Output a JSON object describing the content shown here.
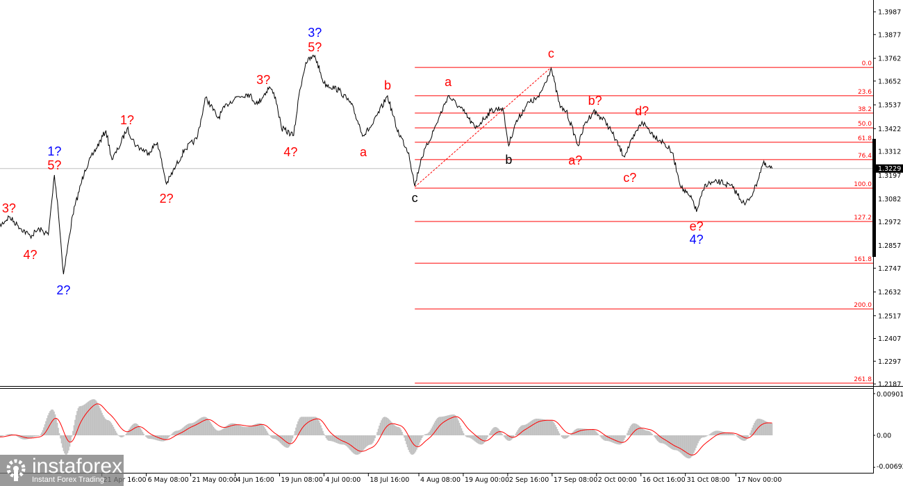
{
  "chart_data": {
    "type": "line",
    "title": "",
    "price_axis": {
      "ticks": [
        "1.3987",
        "1.3877",
        "1.3762",
        "1.3652",
        "1.3537",
        "1.3422",
        "1.3312",
        "1.3197",
        "1.3082",
        "1.2972",
        "1.2857",
        "1.2747",
        "1.2632",
        "1.2517",
        "1.2407",
        "1.2297",
        "1.2187"
      ],
      "range": [
        1.2187,
        1.3987
      ]
    },
    "time_axis": {
      "ticks": [
        {
          "date": "04-21 16:00",
          "label": "21 Apr 16:00"
        },
        {
          "date": "05-06 08:00",
          "label": "6 May 08:00"
        },
        {
          "date": "05-21 00:00",
          "label": "21 May 00:00"
        },
        {
          "date": "06-04 16:00",
          "label": "4 Jun 16:00"
        },
        {
          "date": "06-19 08:00",
          "label": "19 Jun 08:00"
        },
        {
          "date": "07-04 00:00",
          "label": "4 Jul 00:00"
        },
        {
          "date": "07-18 16:00",
          "label": "18 Jul 16:00"
        },
        {
          "date": "08-04 08:00",
          "label": "4 Aug 08:00"
        },
        {
          "date": "08-19 00:00",
          "label": "19 Aug 00:00"
        },
        {
          "date": "09-02 16:00",
          "label": "2 Sep 16:00"
        },
        {
          "date": "09-17 08:00",
          "label": "17 Sep 08:00"
        },
        {
          "date": "10-02 00:00",
          "label": "2 Oct 00:00"
        },
        {
          "date": "10-16 16:00",
          "label": "16 Oct 16:00"
        },
        {
          "date": "10-31 08:00",
          "label": "31 Oct 08:00"
        },
        {
          "date": "11-17 00:00",
          "label": "17 Nov 00:00"
        }
      ]
    },
    "current_price": "1.3229",
    "price_series": [
      [
        "03-18",
        1.2936
      ],
      [
        "03-22",
        1.2996
      ],
      [
        "03-25",
        1.2953
      ],
      [
        "03-29",
        1.2902
      ],
      [
        "04-01",
        1.2936
      ],
      [
        "04-04",
        1.2909
      ],
      [
        "04-06",
        1.3198
      ],
      [
        "04-07",
        1.307
      ],
      [
        "04-09",
        1.2718
      ],
      [
        "04-12",
        1.3003
      ],
      [
        "04-16",
        1.3221
      ],
      [
        "04-19",
        1.3305
      ],
      [
        "04-23",
        1.3413
      ],
      [
        "04-25",
        1.3272
      ],
      [
        "04-27",
        1.3322
      ],
      [
        "04-30",
        1.3423
      ],
      [
        "05-03",
        1.3339
      ],
      [
        "05-07",
        1.3305
      ],
      [
        "05-10",
        1.3356
      ],
      [
        "05-13",
        1.3154
      ],
      [
        "05-16",
        1.3238
      ],
      [
        "05-19",
        1.3322
      ],
      [
        "05-23",
        1.3372
      ],
      [
        "05-26",
        1.3574
      ],
      [
        "05-30",
        1.3473
      ],
      [
        "06-02",
        1.354
      ],
      [
        "06-05",
        1.3574
      ],
      [
        "06-09",
        1.3591
      ],
      [
        "06-12",
        1.354
      ],
      [
        "06-16",
        1.3624
      ],
      [
        "06-18",
        1.3574
      ],
      [
        "06-20",
        1.3423
      ],
      [
        "06-24",
        1.3389
      ],
      [
        "06-26",
        1.3608
      ],
      [
        "06-28",
        1.3742
      ],
      [
        "07-01",
        1.3775
      ],
      [
        "07-04",
        1.3641
      ],
      [
        "07-09",
        1.3608
      ],
      [
        "07-13",
        1.354
      ],
      [
        "07-17",
        1.3389
      ],
      [
        "07-20",
        1.344
      ],
      [
        "07-25",
        1.3581
      ],
      [
        "07-28",
        1.3423
      ],
      [
        "08-01",
        1.3305
      ],
      [
        "08-03",
        1.3144
      ],
      [
        "08-05",
        1.3272
      ],
      [
        "08-10",
        1.344
      ],
      [
        "08-14",
        1.3581
      ],
      [
        "08-19",
        1.3507
      ],
      [
        "08-23",
        1.3423
      ],
      [
        "08-28",
        1.3507
      ],
      [
        "09-01",
        1.3524
      ],
      [
        "09-03",
        1.3339
      ],
      [
        "09-05",
        1.344
      ],
      [
        "09-09",
        1.354
      ],
      [
        "09-13",
        1.3574
      ],
      [
        "09-17",
        1.3715
      ],
      [
        "09-20",
        1.3524
      ],
      [
        "09-22",
        1.3507
      ],
      [
        "09-26",
        1.3339
      ],
      [
        "09-28",
        1.344
      ],
      [
        "10-01",
        1.3507
      ],
      [
        "10-05",
        1.3456
      ],
      [
        "10-07",
        1.3406
      ],
      [
        "10-11",
        1.3289
      ],
      [
        "10-14",
        1.3372
      ],
      [
        "10-17",
        1.3456
      ],
      [
        "10-21",
        1.3389
      ],
      [
        "10-24",
        1.3356
      ],
      [
        "10-27",
        1.3305
      ],
      [
        "10-30",
        1.3137
      ],
      [
        "11-03",
        1.307
      ],
      [
        "11-04",
        1.302
      ],
      [
        "11-07",
        1.3154
      ],
      [
        "11-12",
        1.3164
      ],
      [
        "11-16",
        1.3137
      ],
      [
        "11-20",
        1.3053
      ],
      [
        "11-23",
        1.3121
      ],
      [
        "11-26",
        1.3255
      ],
      [
        "11-27",
        1.3238
      ],
      [
        "11-29",
        1.3229
      ]
    ],
    "fibonacci": {
      "from": [
        "08-03",
        1.314
      ],
      "to": [
        "09-17",
        1.3718
      ],
      "levels": [
        {
          "label": "0.0",
          "price": 1.3718
        },
        {
          "label": "23.6",
          "price": 1.3581
        },
        {
          "label": "38.2",
          "price": 1.3497
        },
        {
          "label": "50.0",
          "price": 1.3426
        },
        {
          "label": "61.8",
          "price": 1.3356
        },
        {
          "label": "76.4",
          "price": 1.3272
        },
        {
          "label": "100.0",
          "price": 1.3134
        },
        {
          "label": "127.2",
          "price": 1.2973
        },
        {
          "label": "161.8",
          "price": 1.2771
        },
        {
          "label": "200.0",
          "price": 1.255
        },
        {
          "label": "261.8",
          "price": 1.2191
        }
      ],
      "color": "#ff0000"
    },
    "wave_labels": [
      {
        "text": "3?",
        "color": "#ff0000",
        "date": "03-22",
        "price": 1.3037
      },
      {
        "text": "4?",
        "color": "#ff0000",
        "date": "03-29",
        "price": 1.2812
      },
      {
        "text": "1?",
        "color": "#0000ff",
        "date": "04-06",
        "price": 1.3312
      },
      {
        "text": "5?",
        "color": "#ff0000",
        "date": "04-06",
        "price": 1.3245
      },
      {
        "text": "2?",
        "color": "#0000ff",
        "date": "04-09",
        "price": 1.264
      },
      {
        "text": "1?",
        "color": "#ff0000",
        "date": "04-30",
        "price": 1.3463
      },
      {
        "text": "2?",
        "color": "#ff0000",
        "date": "05-13",
        "price": 1.3084
      },
      {
        "text": "3?",
        "color": "#ff0000",
        "date": "06-14",
        "price": 1.3658
      },
      {
        "text": "4?",
        "color": "#ff0000",
        "date": "06-23",
        "price": 1.3309
      },
      {
        "text": "3?",
        "color": "#0000ff",
        "date": "07-01",
        "price": 1.3886
      },
      {
        "text": "5?",
        "color": "#ff0000",
        "date": "07-01",
        "price": 1.3816
      },
      {
        "text": "a",
        "color": "#ff0000",
        "date": "07-17",
        "price": 1.3309
      },
      {
        "text": "b",
        "color": "#ff0000",
        "date": "07-25",
        "price": 1.3631
      },
      {
        "text": "c",
        "color": "#000000",
        "date": "08-03",
        "price": 1.3087
      },
      {
        "text": "a",
        "color": "#ff0000",
        "date": "08-14",
        "price": 1.3648
      },
      {
        "text": "b",
        "color": "#000000",
        "date": "09-03",
        "price": 1.3272
      },
      {
        "text": "c",
        "color": "#ff0000",
        "date": "09-17",
        "price": 1.3786
      },
      {
        "text": "b?",
        "color": "#ff0000",
        "date": "10-01 12:00",
        "price": 1.3557
      },
      {
        "text": "a?",
        "color": "#ff0000",
        "date": "09-25",
        "price": 1.3268
      },
      {
        "text": "d?",
        "color": "#ff0000",
        "date": "10-17",
        "price": 1.3507
      },
      {
        "text": "c?",
        "color": "#ff0000",
        "date": "10-13",
        "price": 1.3184
      },
      {
        "text": "e?",
        "color": "#ff0000",
        "date": "11-04",
        "price": 1.2949
      },
      {
        "text": "4?",
        "color": "#0000ff",
        "date": "11-04",
        "price": 1.2886
      }
    ],
    "oscillator": {
      "ticks": [
        "0.00901",
        "0.00",
        "-0.00692"
      ],
      "range": [
        -0.00692,
        0.00901
      ],
      "start": "03-18",
      "end": "11-29",
      "histogram_color": "#c0c0c0",
      "signal_color": "#ff0000",
      "values": [
        -0.00045,
        0.0003,
        -0.0009,
        -0.00015,
        0.0056,
        -0.0042,
        0.0063,
        0.0078,
        0.0033,
        -0.00045,
        0.0026,
        -0.00075,
        -0.0013,
        0.001,
        0.0026,
        0.004,
        0.001,
        0.0026,
        0.0018,
        0.0026,
        -0.00075,
        -0.0027,
        0.004,
        0.004,
        -0.0012,
        -0.002,
        -0.0042,
        -0.002,
        0.004,
        0.0018,
        -0.0042,
        0.0003,
        0.004,
        0.0045,
        -0.00045,
        -0.002,
        0.0018,
        -0.0012,
        0.0022,
        0.0036,
        0.0033,
        -0.00075,
        0.0015,
        0.0013,
        -0.0012,
        -0.002,
        0.0026,
        0.001,
        -0.0017,
        -0.0032,
        -0.005,
        -0.00045,
        0.001,
        0.00045,
        -0.0012,
        0.0036,
        0.0026
      ]
    }
  },
  "watermark": {
    "brand": "instaforex",
    "tagline": "Instant Forex Trading"
  }
}
